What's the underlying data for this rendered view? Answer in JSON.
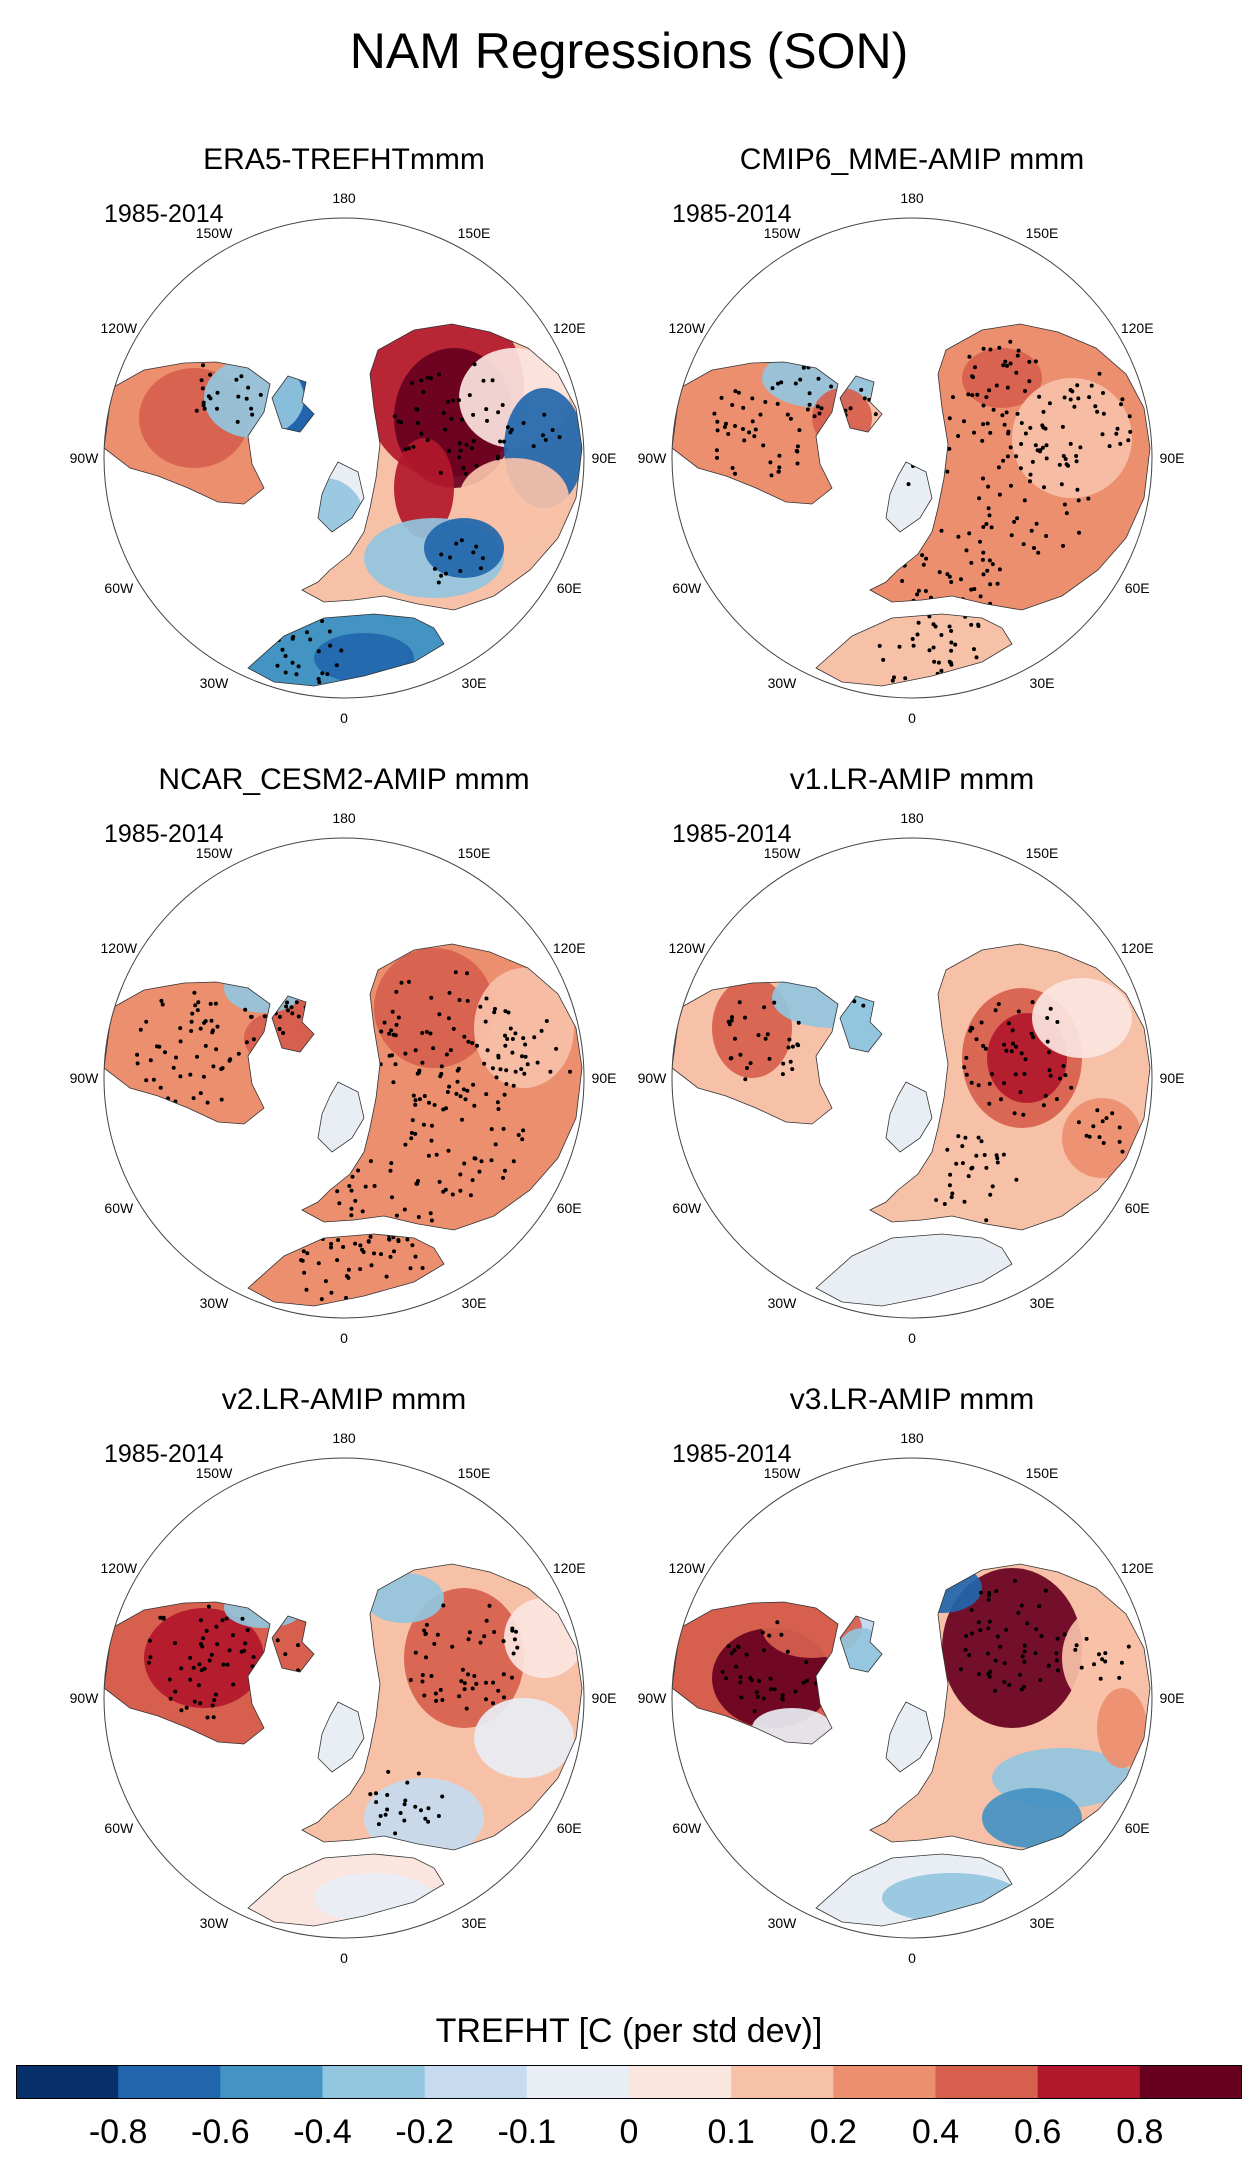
{
  "title": "NAM Regressions (SON)",
  "period_label": "1985-2014",
  "lon_labels": [
    "180",
    "150E",
    "120E",
    "90E",
    "60E",
    "30E",
    "0",
    "30W",
    "60W",
    "90W",
    "120W",
    "150W"
  ],
  "panels": [
    {
      "title": "ERA5-TREFHTmmm",
      "pattern": "era5"
    },
    {
      "title": "CMIP6_MME-AMIP  mmm",
      "pattern": "cmip6"
    },
    {
      "title": "NCAR_CESM2-AMIP  mmm",
      "pattern": "cesm2"
    },
    {
      "title": "v1.LR-AMIP  mmm",
      "pattern": "v1"
    },
    {
      "title": "v2.LR-AMIP  mmm",
      "pattern": "v2"
    },
    {
      "title": "v3.LR-AMIP  mmm",
      "pattern": "v3"
    }
  ],
  "colorbar": {
    "title": "TREFHT [C (per std dev)]",
    "colors": [
      "#08306b",
      "#2166ac",
      "#4393c3",
      "#92c5de",
      "#c6dbef",
      "#e8eef4",
      "#fbe5df",
      "#f7c1a8",
      "#ec8f6f",
      "#d6604d",
      "#b2182b",
      "#67001f"
    ],
    "labels": [
      "-0.8",
      "-0.6",
      "-0.4",
      "-0.2",
      "-0.1",
      "0",
      "0.1",
      "0.2",
      "0.4",
      "0.6",
      "0.8"
    ]
  }
}
